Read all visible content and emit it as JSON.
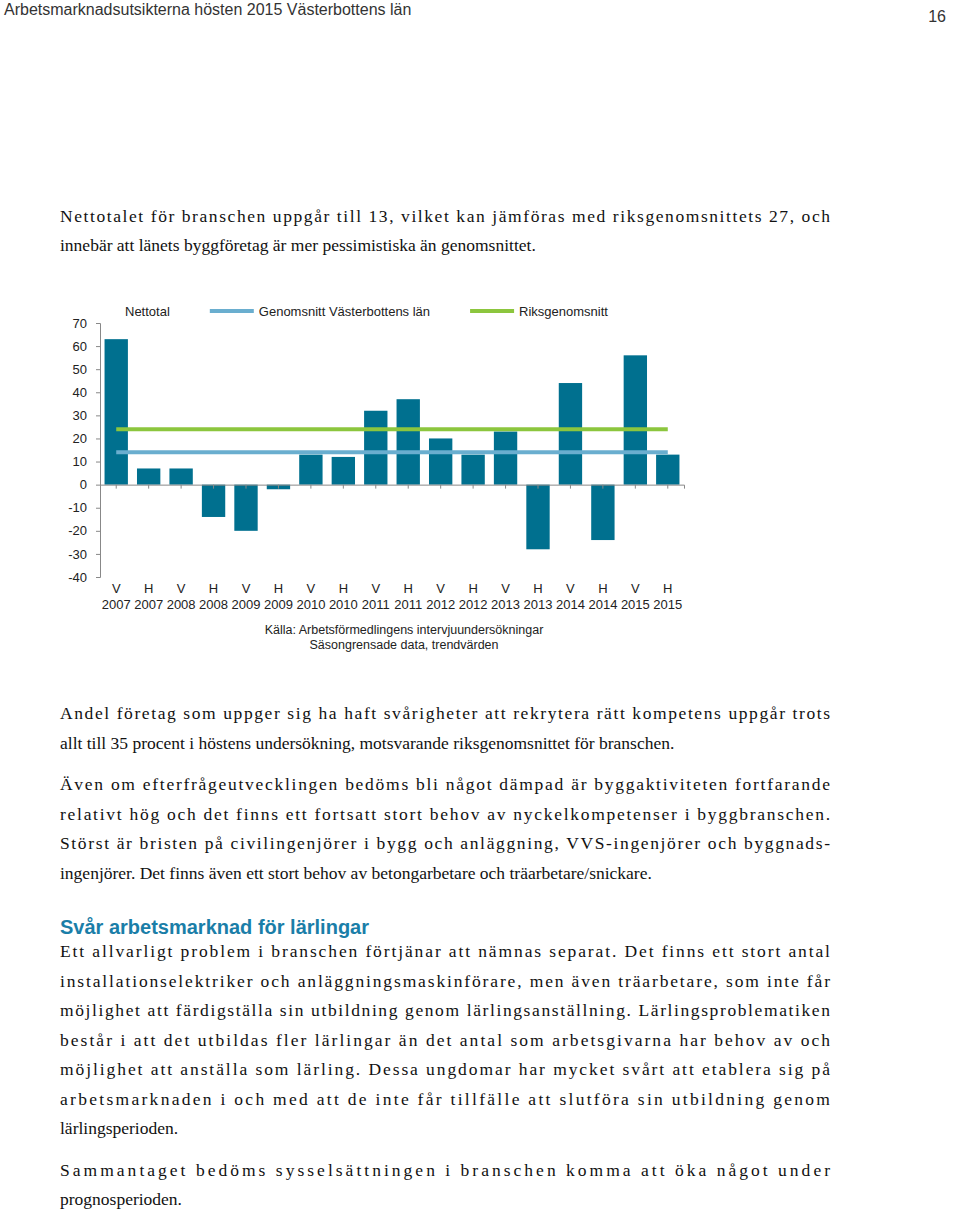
{
  "header": {
    "title": "Arbetsmarknadsutsikterna hösten 2015 Västerbottens län",
    "page_number": "16"
  },
  "intro": [
    "Nettotalet för branschen uppgår till 13, vilket kan jämföras med riksgenomsnittets 27, och",
    "innebär att länets byggföretag är mer pessimistiska än genomsnittet."
  ],
  "body": [
    {
      "kind": "paragraph",
      "lines": [
        "Andel företag som uppger sig ha haft svårigheter att rekrytera rätt kompetens uppgår trots",
        "allt till 35 procent i höstens undersökning, motsvarande riksgenomsnittet för branschen."
      ]
    },
    {
      "kind": "paragraph",
      "lines": [
        "Även om efterfrågeutvecklingen bedöms bli något dämpad är byggaktiviteten fortfarande",
        "relativt hög och det finns ett fortsatt stort behov av nyckelkompetenser i byggbranschen.",
        "Störst är bristen på civilingenjörer i bygg och anläggning, VVS-ingenjörer och byggnads-",
        "ingenjörer. Det finns även ett stort behov av betongarbetare och träarbetare/snickare."
      ]
    },
    {
      "kind": "heading",
      "text": "Svår arbetsmarknad för lärlingar"
    },
    {
      "kind": "paragraph",
      "lines": [
        "Ett allvarligt problem i branschen förtjänar att nämnas separat. Det finns ett stort antal",
        "installationselektriker och anläggningsmaskinförare, men även träarbetare, som inte får",
        "möjlighet att färdigställa sin utbildning genom lärlingsanställning. Lärlingsproblematiken",
        "består i att det utbildas fler lärlingar än det antal som arbetsgivarna har behov av och",
        "möjlighet att anställa som lärling. Dessa ungdomar har mycket svårt att etablera sig på",
        "arbetsmarknaden i och med att de inte får tillfälle att slutföra sin utbildning genom",
        "lärlingsperioden."
      ]
    },
    {
      "kind": "paragraph",
      "lines": [
        "Sammantaget bedöms sysselsättningen i branschen komma att öka något under",
        "prognosperioden."
      ]
    }
  ],
  "chart_data": {
    "type": "bar",
    "categories": [
      "V 2007",
      "H 2007",
      "V 2008",
      "H 2008",
      "V 2009",
      "H 2009",
      "V 2010",
      "H 2010",
      "V 2011",
      "H 2011",
      "V 2012",
      "H 2012",
      "V 2013",
      "H 2013",
      "V 2014",
      "H 2014",
      "V 2015",
      "H 2015"
    ],
    "series": [
      {
        "name": "Nettotal",
        "type": "bar",
        "color": "#00708f",
        "values": [
          63,
          7,
          7,
          -14,
          -20,
          -2,
          13,
          12,
          32,
          37,
          20,
          13,
          23,
          -28,
          44,
          -24,
          56,
          13
        ]
      },
      {
        "name": "Genomsnitt Västerbottens län",
        "type": "line",
        "color": "#6aaecf",
        "values": [
          14,
          14,
          14,
          14,
          14,
          14,
          14,
          14,
          14,
          14,
          14,
          14,
          14,
          14,
          14,
          14,
          14,
          14
        ]
      },
      {
        "name": "Riksgenomsnitt",
        "type": "line",
        "color": "#8cc63e",
        "values": [
          24,
          24,
          24,
          24,
          24,
          24,
          24,
          24,
          24,
          24,
          24,
          24,
          24,
          24,
          24,
          24,
          24,
          24
        ]
      }
    ],
    "ylim": [
      -40,
      70
    ],
    "yticks": [
      -40,
      -30,
      -20,
      -10,
      0,
      10,
      20,
      30,
      40,
      50,
      60,
      70
    ],
    "grid": false,
    "legend": "top",
    "annotations": [
      "Källa: Arbetsförmedlingens intervjuundersökningar",
      "Säsongrensade data, trendvärden"
    ]
  }
}
